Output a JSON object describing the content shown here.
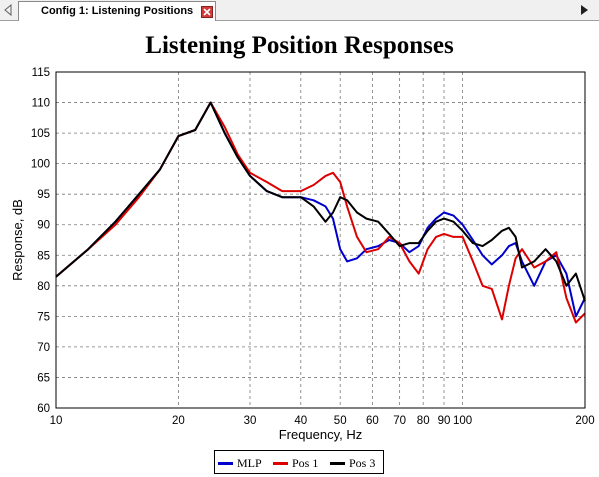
{
  "tab": {
    "title": "Config 1: Listening Positions"
  },
  "chart_data": {
    "type": "line",
    "title": "Listening Position Responses",
    "xlabel": "Frequency, Hz",
    "ylabel": "Response, dB",
    "xscale": "log",
    "xlim": [
      10,
      200
    ],
    "ylim": [
      60,
      115
    ],
    "xticks": [
      10,
      20,
      30,
      40,
      50,
      60,
      70,
      80,
      90,
      100,
      200
    ],
    "yticks": [
      60,
      65,
      70,
      75,
      80,
      85,
      90,
      95,
      100,
      105,
      110,
      115
    ],
    "grid": true,
    "legend": "bottom",
    "series": [
      {
        "name": "MLP",
        "color": "#0000cc",
        "x": [
          10,
          12,
          14,
          16,
          18,
          20,
          22,
          24,
          26,
          28,
          30,
          33,
          36,
          40,
          43,
          46,
          48,
          50,
          52,
          55,
          58,
          62,
          66,
          70,
          74,
          78,
          82,
          86,
          90,
          95,
          100,
          106,
          112,
          118,
          125,
          130,
          135,
          140,
          150,
          160,
          170,
          180,
          190,
          200
        ],
        "y": [
          81.5,
          86,
          90.5,
          95,
          99,
          104.5,
          105.5,
          110,
          105,
          101,
          98,
          95.5,
          94.5,
          94.5,
          94,
          93,
          91,
          86,
          84,
          84.5,
          86,
          86.5,
          87.5,
          87,
          85.5,
          86.5,
          89.5,
          91,
          92,
          91.5,
          90,
          87.5,
          85,
          83.5,
          85,
          86.5,
          87,
          84,
          80,
          84,
          85,
          82,
          75,
          78
        ]
      },
      {
        "name": "Pos 1",
        "color": "#dd0000",
        "x": [
          10,
          12,
          14,
          16,
          18,
          20,
          22,
          24,
          26,
          28,
          30,
          33,
          36,
          40,
          43,
          46,
          48,
          50,
          52,
          55,
          58,
          62,
          66,
          70,
          74,
          78,
          82,
          86,
          90,
          95,
          100,
          106,
          112,
          118,
          125,
          130,
          135,
          140,
          150,
          160,
          170,
          180,
          190,
          200
        ],
        "y": [
          81.5,
          86,
          90,
          94.5,
          99,
          104.5,
          105.5,
          110,
          106,
          101.5,
          98.5,
          97,
          95.5,
          95.5,
          96.5,
          98,
          98.5,
          97,
          93,
          88,
          85.5,
          86,
          88,
          87,
          84,
          82,
          86,
          88,
          88.5,
          88,
          88,
          84,
          80,
          79.5,
          74.5,
          80,
          84.5,
          86,
          83,
          84,
          85.5,
          78,
          74,
          75.5
        ]
      },
      {
        "name": "Pos 3",
        "color": "#000000",
        "x": [
          10,
          12,
          14,
          16,
          18,
          20,
          22,
          24,
          26,
          28,
          30,
          33,
          36,
          40,
          43,
          46,
          48,
          50,
          52,
          55,
          58,
          62,
          66,
          70,
          74,
          78,
          82,
          86,
          90,
          95,
          100,
          106,
          112,
          118,
          125,
          130,
          135,
          140,
          150,
          160,
          170,
          180,
          190,
          200
        ],
        "y": [
          81.5,
          86,
          90.5,
          95,
          99,
          104.5,
          105.5,
          110,
          105,
          101,
          98,
          95.5,
          94.5,
          94.5,
          93,
          90.5,
          92,
          94.5,
          94,
          92,
          91,
          90.5,
          88.5,
          86.5,
          87,
          87,
          89,
          90.5,
          91,
          90.5,
          89,
          87,
          86.5,
          87.5,
          89,
          89.5,
          88,
          83,
          84,
          86,
          84,
          80,
          82,
          77.5
        ]
      }
    ]
  }
}
